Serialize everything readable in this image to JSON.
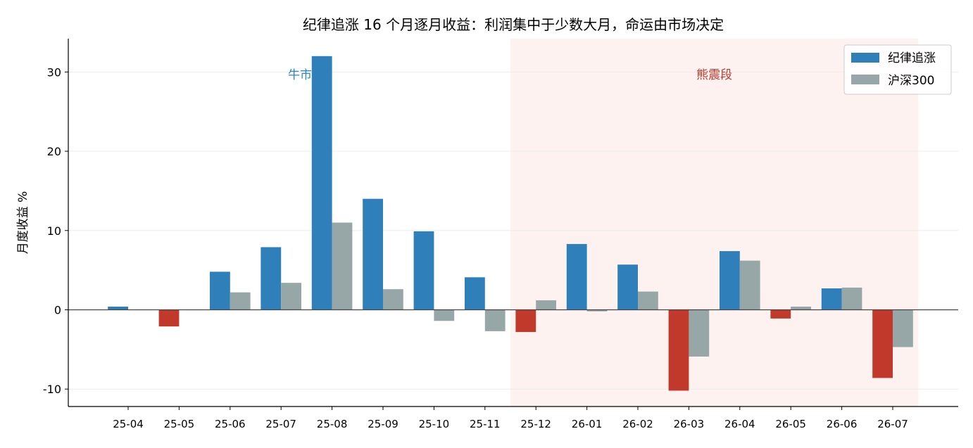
{
  "chart_data": {
    "type": "bar",
    "title": "纪律追涨 16 个月逐月收益：利润集中于少数大月，命运由市场决定",
    "xlabel": "",
    "ylabel": "月度收益 %",
    "ylim": [
      -12.2,
      34.2
    ],
    "yticks": [
      -10,
      0,
      10,
      20,
      30
    ],
    "ytick_labels": [
      "-10",
      "0",
      "10",
      "20",
      "30"
    ],
    "categories": [
      "25-04",
      "25-05",
      "25-06",
      "25-07",
      "25-08",
      "25-09",
      "25-10",
      "25-11",
      "25-12",
      "26-01",
      "26-02",
      "26-03",
      "26-04",
      "26-05",
      "26-06",
      "26-07"
    ],
    "series": [
      {
        "name": "纪律追涨",
        "values": [
          0.4,
          -2.1,
          4.8,
          7.9,
          32.0,
          14.0,
          9.9,
          4.1,
          -2.8,
          8.3,
          5.7,
          -10.2,
          7.4,
          -1.1,
          2.7,
          -8.6
        ]
      },
      {
        "name": "沪深300",
        "values": [
          0.0,
          0.0,
          2.2,
          3.4,
          11.0,
          2.6,
          -1.4,
          -2.7,
          1.2,
          -0.2,
          2.3,
          -5.9,
          6.2,
          0.4,
          2.8,
          -4.7
        ]
      }
    ],
    "colors": {
      "positive": "#2e7fba",
      "negative": "#c0392b",
      "benchmark": "#97a6a6",
      "bear_shade": "#fdf2f0",
      "grid": "#ececec",
      "zero_line": "#444444"
    },
    "grid": true,
    "legend": "top-right",
    "annotations": [
      {
        "text": "牛市",
        "color": "#2e86c1"
      },
      {
        "text": "熊震段",
        "color": "#c0392b"
      }
    ],
    "shaded_region": {
      "from": "25-12",
      "to": "26-07",
      "label": "熊震段"
    }
  }
}
